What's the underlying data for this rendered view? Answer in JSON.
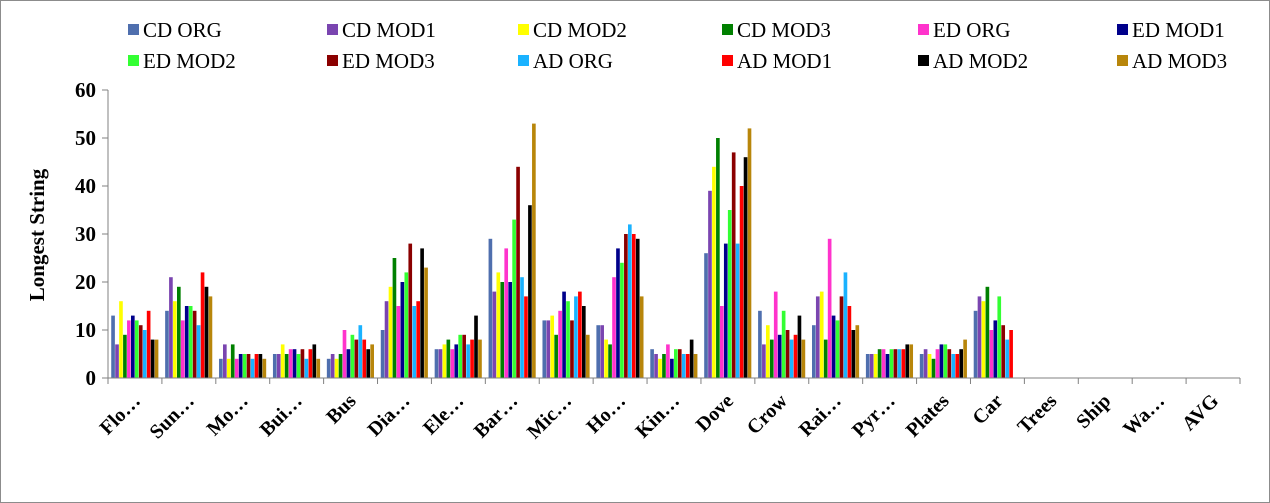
{
  "chart_data": {
    "type": "bar",
    "title": "",
    "xlabel": "",
    "ylabel": "Longest String",
    "ylim": [
      0,
      60
    ],
    "yticks": [
      0,
      10,
      20,
      30,
      40,
      50,
      60
    ],
    "grid": false,
    "legend_position": "top",
    "categories": [
      "Flo…",
      "Sun…",
      "Mo…",
      "Bui…",
      "Bus",
      "Dia…",
      "Ele…",
      "Bar…",
      "Mic…",
      "Ho…",
      "Kin…",
      "Dove",
      "Crow",
      "Rai…",
      "Pyr…",
      "Plates",
      "Car",
      "Trees",
      "Ship",
      "Wa…",
      "AVG"
    ],
    "series": [
      {
        "name": "CD ORG",
        "color": "#4f6fae",
        "values": [
          13,
          14,
          4,
          5,
          4,
          10,
          6,
          29,
          12,
          11,
          6,
          26,
          14,
          11,
          5,
          5,
          14,
          0,
          0,
          0,
          0
        ]
      },
      {
        "name": "CD MOD1",
        "color": "#7a45b0",
        "values": [
          7,
          21,
          7,
          5,
          5,
          16,
          6,
          18,
          12,
          11,
          5,
          39,
          7,
          17,
          5,
          6,
          17,
          0,
          0,
          0,
          0
        ]
      },
      {
        "name": "CD MOD2",
        "color": "#ffff00",
        "values": [
          16,
          16,
          4,
          7,
          4,
          19,
          7,
          22,
          13,
          8,
          4,
          44,
          11,
          18,
          5,
          5,
          16,
          0,
          0,
          0,
          0
        ]
      },
      {
        "name": "CD MOD3",
        "color": "#008000",
        "values": [
          9,
          19,
          7,
          5,
          5,
          25,
          8,
          20,
          9,
          7,
          5,
          50,
          8,
          8,
          6,
          4,
          19,
          0,
          0,
          0,
          0
        ]
      },
      {
        "name": "ED ORG",
        "color": "#ff33cc",
        "values": [
          12,
          12,
          4,
          6,
          10,
          15,
          6,
          27,
          14,
          21,
          7,
          15,
          18,
          29,
          6,
          6,
          10,
          0,
          0,
          0,
          0
        ]
      },
      {
        "name": "ED MOD1",
        "color": "#00008b",
        "values": [
          13,
          15,
          5,
          6,
          6,
          20,
          7,
          20,
          18,
          27,
          4,
          28,
          9,
          13,
          5,
          7,
          12,
          0,
          0,
          0,
          0
        ]
      },
      {
        "name": "ED MOD2",
        "color": "#33ff33",
        "values": [
          12,
          15,
          5,
          5,
          9,
          22,
          9,
          33,
          16,
          24,
          6,
          35,
          14,
          12,
          6,
          7,
          17,
          0,
          0,
          0,
          0
        ]
      },
      {
        "name": "ED MOD3",
        "color": "#8b0000",
        "values": [
          11,
          14,
          5,
          6,
          8,
          28,
          9,
          44,
          12,
          30,
          6,
          47,
          10,
          17,
          6,
          6,
          11,
          0,
          0,
          0,
          0
        ]
      },
      {
        "name": "AD ORG",
        "color": "#1ab2ff",
        "values": [
          10,
          11,
          4,
          4,
          11,
          15,
          7,
          21,
          17,
          32,
          5,
          28,
          8,
          22,
          6,
          5,
          8,
          0,
          0,
          0,
          0
        ]
      },
      {
        "name": "AD MOD1",
        "color": "#ff0000",
        "values": [
          14,
          22,
          5,
          6,
          8,
          16,
          8,
          17,
          18,
          30,
          5,
          40,
          9,
          15,
          6,
          5,
          10,
          0,
          0,
          0,
          0
        ]
      },
      {
        "name": "AD MOD2",
        "color": "#000000",
        "values": [
          8,
          19,
          5,
          7,
          6,
          27,
          13,
          36,
          15,
          29,
          8,
          46,
          13,
          10,
          7,
          6,
          0,
          0,
          0,
          0,
          0
        ]
      },
      {
        "name": "AD MOD3",
        "color": "#b8860b",
        "values": [
          8,
          17,
          4,
          4,
          7,
          23,
          8,
          53,
          9,
          17,
          5,
          52,
          8,
          11,
          7,
          8,
          0,
          0,
          0,
          0,
          0
        ]
      }
    ]
  }
}
